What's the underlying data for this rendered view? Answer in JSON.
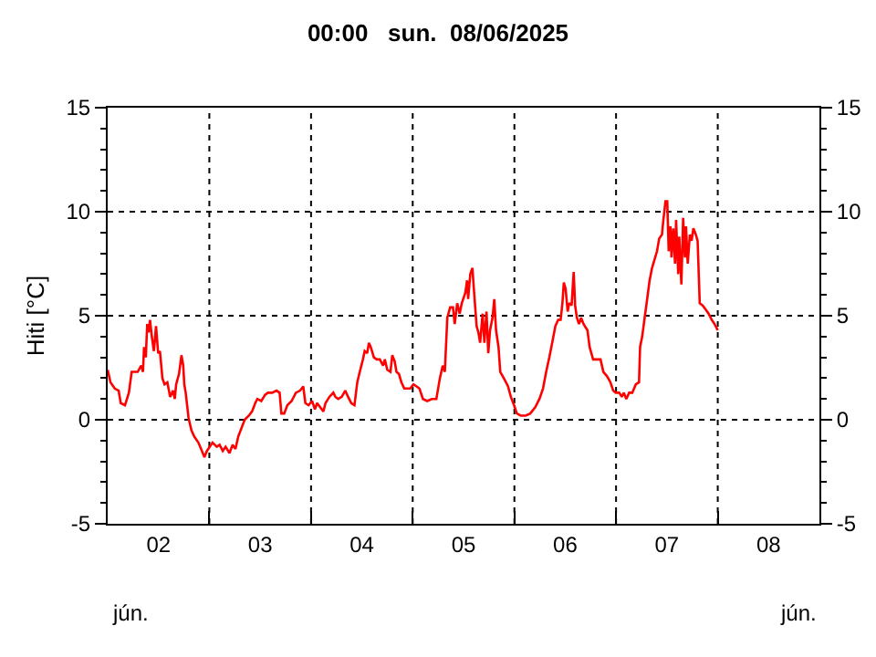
{
  "chart_data": {
    "type": "line",
    "title": "00:00   sun.  08/06/2025",
    "ylabel": "Hiti [°C]",
    "annotations": [
      "jún.",
      "jún."
    ],
    "xlim": [
      "2025-06-02T00:00",
      "2025-06-09T00:00"
    ],
    "xticks": [
      {
        "value": "2025-06-03T00:00",
        "label": null
      },
      {
        "value": "2025-06-04T00:00",
        "label": null
      },
      {
        "value": "2025-06-05T00:00",
        "label": null
      },
      {
        "value": "2025-06-06T00:00",
        "label": null
      },
      {
        "value": "2025-06-07T00:00",
        "label": null
      },
      {
        "value": "2025-06-08T00:00",
        "label": null
      },
      {
        "value": "2025-06-02T12:00",
        "label": "02"
      },
      {
        "value": "2025-06-03T12:00",
        "label": "03"
      },
      {
        "value": "2025-06-04T12:00",
        "label": "04"
      },
      {
        "value": "2025-06-05T12:00",
        "label": "05"
      },
      {
        "value": "2025-06-06T12:00",
        "label": "06"
      },
      {
        "value": "2025-06-07T12:00",
        "label": "07"
      },
      {
        "value": "2025-06-08T12:00",
        "label": "08"
      }
    ],
    "ylim": [
      -5,
      15
    ],
    "yticks": [
      -5,
      0,
      5,
      10,
      15,
      {
        "value": -4,
        "label": null
      },
      {
        "value": -3,
        "label": null
      },
      {
        "value": -2,
        "label": null
      },
      {
        "value": -1,
        "label": null
      },
      {
        "value": 1,
        "label": null
      },
      {
        "value": 2,
        "label": null
      },
      {
        "value": 3,
        "label": null
      },
      {
        "value": 4,
        "label": null
      },
      {
        "value": 6,
        "label": null
      },
      {
        "value": 7,
        "label": null
      },
      {
        "value": 8,
        "label": null
      },
      {
        "value": 9,
        "label": null
      },
      {
        "value": 11,
        "label": null
      },
      {
        "value": 12,
        "label": null
      },
      {
        "value": 13,
        "label": null
      },
      {
        "value": 14,
        "label": null
      }
    ],
    "y2lim": [
      -5,
      15
    ],
    "y2ticks": [
      -5,
      0,
      5,
      10,
      15
    ],
    "grid": true,
    "line_style": "solid",
    "marker": "none",
    "series": [
      {
        "color": "#ff0000",
        "x": [
          "2025-06-02T00:00",
          "2025-06-02T00:40",
          "2025-06-02T01:40",
          "2025-06-02T02:35",
          "2025-06-02T03:05",
          "2025-06-02T04:05",
          "2025-06-02T05:00",
          "2025-06-02T05:40",
          "2025-06-02T07:05",
          "2025-06-02T07:55",
          "2025-06-02T08:20",
          "2025-06-02T08:35",
          "2025-06-02T09:00",
          "2025-06-02T09:20",
          "2025-06-02T09:40",
          "2025-06-02T10:00",
          "2025-06-02T10:25",
          "2025-06-02T10:55",
          "2025-06-02T11:25",
          "2025-06-02T11:55",
          "2025-06-02T12:20",
          "2025-06-02T12:55",
          "2025-06-02T13:25",
          "2025-06-02T14:05",
          "2025-06-02T14:45",
          "2025-06-02T15:25",
          "2025-06-02T15:50",
          "2025-06-02T16:10",
          "2025-06-02T16:50",
          "2025-06-02T17:25",
          "2025-06-02T17:50",
          "2025-06-02T18:05",
          "2025-06-02T18:25",
          "2025-06-02T19:05",
          "2025-06-02T19:45",
          "2025-06-02T20:25",
          "2025-06-02T21:25",
          "2025-06-02T22:15",
          "2025-06-02T22:50",
          "2025-06-02T23:25",
          "2025-06-02T23:45",
          "2025-06-03T00:45",
          "2025-06-03T01:45",
          "2025-06-03T02:25",
          "2025-06-03T03:10",
          "2025-06-03T03:50",
          "2025-06-03T04:45",
          "2025-06-03T05:30",
          "2025-06-03T06:10",
          "2025-06-03T06:50",
          "2025-06-03T07:35",
          "2025-06-03T08:20",
          "2025-06-03T09:20",
          "2025-06-03T10:05",
          "2025-06-03T10:50",
          "2025-06-03T11:20",
          "2025-06-03T12:15",
          "2025-06-03T13:10",
          "2025-06-03T13:50",
          "2025-06-03T14:50",
          "2025-06-03T15:50",
          "2025-06-03T16:35",
          "2025-06-03T17:00",
          "2025-06-03T17:40",
          "2025-06-03T18:25",
          "2025-06-03T19:25",
          "2025-06-03T20:25",
          "2025-06-03T21:25",
          "2025-06-03T22:10",
          "2025-06-03T22:40",
          "2025-06-03T23:25",
          "2025-06-04T00:15",
          "2025-06-04T00:55",
          "2025-06-04T01:25",
          "2025-06-04T02:10",
          "2025-06-04T02:55",
          "2025-06-04T03:25",
          "2025-06-04T04:20",
          "2025-06-04T05:15",
          "2025-06-04T05:45",
          "2025-06-04T06:25",
          "2025-06-04T07:15",
          "2025-06-04T08:05",
          "2025-06-04T08:45",
          "2025-06-04T09:30",
          "2025-06-04T10:15",
          "2025-06-04T10:55",
          "2025-06-04T11:30",
          "2025-06-04T12:15",
          "2025-06-04T12:40",
          "2025-06-04T13:15",
          "2025-06-04T13:40",
          "2025-06-04T14:05",
          "2025-06-04T14:50",
          "2025-06-04T15:30",
          "2025-06-04T16:15",
          "2025-06-04T17:00",
          "2025-06-04T17:25",
          "2025-06-04T18:00",
          "2025-06-04T18:45",
          "2025-06-04T19:10",
          "2025-06-04T19:45",
          "2025-06-04T20:10",
          "2025-06-04T20:45",
          "2025-06-04T21:20",
          "2025-06-04T22:00",
          "2025-06-04T22:45",
          "2025-06-04T23:25",
          "2025-06-05T00:10",
          "2025-06-05T00:55",
          "2025-06-05T01:35",
          "2025-06-05T02:25",
          "2025-06-05T03:25",
          "2025-06-05T04:30",
          "2025-06-05T05:35",
          "2025-06-05T06:25",
          "2025-06-05T07:05",
          "2025-06-05T07:35",
          "2025-06-05T08:10",
          "2025-06-05T08:50",
          "2025-06-05T09:30",
          "2025-06-05T09:55",
          "2025-06-05T10:30",
          "2025-06-05T11:05",
          "2025-06-05T11:35",
          "2025-06-05T12:25",
          "2025-06-05T12:50",
          "2025-06-05T13:05",
          "2025-06-05T13:35",
          "2025-06-05T14:05",
          "2025-06-05T14:30",
          "2025-06-05T15:05",
          "2025-06-05T15:30",
          "2025-06-05T15:55",
          "2025-06-05T16:30",
          "2025-06-05T16:55",
          "2025-06-05T17:25",
          "2025-06-05T17:50",
          "2025-06-05T18:15",
          "2025-06-05T18:50",
          "2025-06-05T19:15",
          "2025-06-05T19:40",
          "2025-06-05T20:15",
          "2025-06-05T20:40",
          "2025-06-05T21:30",
          "2025-06-05T22:30",
          "2025-06-05T23:10",
          "2025-06-05T23:55",
          "2025-06-06T00:35",
          "2025-06-06T01:30",
          "2025-06-06T02:40",
          "2025-06-06T03:45",
          "2025-06-06T04:55",
          "2025-06-06T05:55",
          "2025-06-06T06:45",
          "2025-06-06T07:30",
          "2025-06-06T08:15",
          "2025-06-06T08:55",
          "2025-06-06T09:40",
          "2025-06-06T10:20",
          "2025-06-06T10:55",
          "2025-06-06T11:20",
          "2025-06-06T11:40",
          "2025-06-06T12:05",
          "2025-06-06T12:35",
          "2025-06-06T12:55",
          "2025-06-06T13:30",
          "2025-06-06T14:00",
          "2025-06-06T14:20",
          "2025-06-06T14:45",
          "2025-06-06T15:15",
          "2025-06-06T15:45",
          "2025-06-06T16:20",
          "2025-06-06T17:15",
          "2025-06-06T17:45",
          "2025-06-06T18:35",
          "2025-06-06T19:15",
          "2025-06-06T20:20",
          "2025-06-06T21:00",
          "2025-06-06T21:50",
          "2025-06-06T22:40",
          "2025-06-06T23:20",
          "2025-06-06T23:55",
          "2025-06-07T00:45",
          "2025-06-07T01:20",
          "2025-06-07T01:50",
          "2025-06-07T02:25",
          "2025-06-07T03:05",
          "2025-06-07T03:50",
          "2025-06-07T04:40",
          "2025-06-07T05:25",
          "2025-06-07T05:40",
          "2025-06-07T06:10",
          "2025-06-07T06:45",
          "2025-06-07T07:20",
          "2025-06-07T07:55",
          "2025-06-07T08:30",
          "2025-06-07T09:05",
          "2025-06-07T09:40",
          "2025-06-07T10:10",
          "2025-06-07T10:50",
          "2025-06-07T11:10",
          "2025-06-07T11:40",
          "2025-06-07T12:05",
          "2025-06-07T12:25",
          "2025-06-07T12:50",
          "2025-06-07T13:05",
          "2025-06-07T13:30",
          "2025-06-07T13:55",
          "2025-06-07T14:10",
          "2025-06-07T14:40",
          "2025-06-07T14:55",
          "2025-06-07T15:25",
          "2025-06-07T15:50",
          "2025-06-07T16:15",
          "2025-06-07T16:30",
          "2025-06-07T16:55",
          "2025-06-07T17:25",
          "2025-06-07T17:50",
          "2025-06-07T18:15",
          "2025-06-07T18:50",
          "2025-06-07T19:15",
          "2025-06-07T19:45",
          "2025-06-07T20:25",
          "2025-06-07T21:10",
          "2025-06-07T21:50",
          "2025-06-07T22:35",
          "2025-06-07T23:15",
          "2025-06-08T00:00"
        ],
        "values": [
          2.4,
          1.8,
          1.5,
          1.4,
          0.8,
          0.7,
          1.3,
          2.3,
          2.3,
          2.6,
          2.3,
          3.5,
          3.0,
          4.6,
          4.2,
          4.8,
          4.0,
          3.3,
          4.5,
          3.2,
          3.3,
          2.0,
          1.7,
          1.8,
          1.1,
          1.4,
          1.0,
          1.7,
          2.2,
          3.1,
          2.6,
          1.7,
          1.3,
          0.1,
          -0.5,
          -0.8,
          -1.1,
          -1.5,
          -1.8,
          -1.5,
          -1.4,
          -1.1,
          -1.3,
          -1.2,
          -1.5,
          -1.3,
          -1.6,
          -1.2,
          -1.4,
          -0.8,
          -0.4,
          0.0,
          0.2,
          0.4,
          0.8,
          1.0,
          0.9,
          1.2,
          1.3,
          1.3,
          1.4,
          1.3,
          0.3,
          0.3,
          0.7,
          0.9,
          1.3,
          1.4,
          1.6,
          0.8,
          0.7,
          0.9,
          0.5,
          0.8,
          0.6,
          0.4,
          0.8,
          1.1,
          1.3,
          1.1,
          1.0,
          1.1,
          1.4,
          1.1,
          0.8,
          0.7,
          1.8,
          2.3,
          2.9,
          3.3,
          3.2,
          3.7,
          3.5,
          3.0,
          2.9,
          2.9,
          2.6,
          2.9,
          2.4,
          2.3,
          3.1,
          2.8,
          2.3,
          2.2,
          1.8,
          1.5,
          1.5,
          1.5,
          1.7,
          1.6,
          1.5,
          1.0,
          0.9,
          1.0,
          1.0,
          2.0,
          2.6,
          2.3,
          4.9,
          5.4,
          5.4,
          4.6,
          5.6,
          5.1,
          5.6,
          6.1,
          6.7,
          5.8,
          7.0,
          7.3,
          6.1,
          4.5,
          4.2,
          3.7,
          5.1,
          3.7,
          5.2,
          3.2,
          4.3,
          4.9,
          5.8,
          4.3,
          3.5,
          2.3,
          2.0,
          1.6,
          1.1,
          0.7,
          0.3,
          0.2,
          0.2,
          0.3,
          0.6,
          1.0,
          1.5,
          2.3,
          3.0,
          3.7,
          4.5,
          4.8,
          4.8,
          5.6,
          6.6,
          6.3,
          5.2,
          5.6,
          5.5,
          7.1,
          5.5,
          4.9,
          4.6,
          4.9,
          4.6,
          4.3,
          3.5,
          2.9,
          2.9,
          2.9,
          2.3,
          2.1,
          1.8,
          1.4,
          1.3,
          1.3,
          1.1,
          1.3,
          1.0,
          1.3,
          1.3,
          1.7,
          1.8,
          3.5,
          4.0,
          4.9,
          5.8,
          6.7,
          7.3,
          7.7,
          8.1,
          8.7,
          8.9,
          9.6,
          10.5,
          10.5,
          8.1,
          9.3,
          7.8,
          9.2,
          7.5,
          9.6,
          7.0,
          8.8,
          6.5,
          9.7,
          7.8,
          9.3,
          7.5,
          8.9,
          8.6,
          9.2,
          8.9,
          8.6,
          5.6,
          5.5,
          5.3,
          5.1,
          4.8,
          4.6,
          4.3
        ]
      }
    ]
  }
}
